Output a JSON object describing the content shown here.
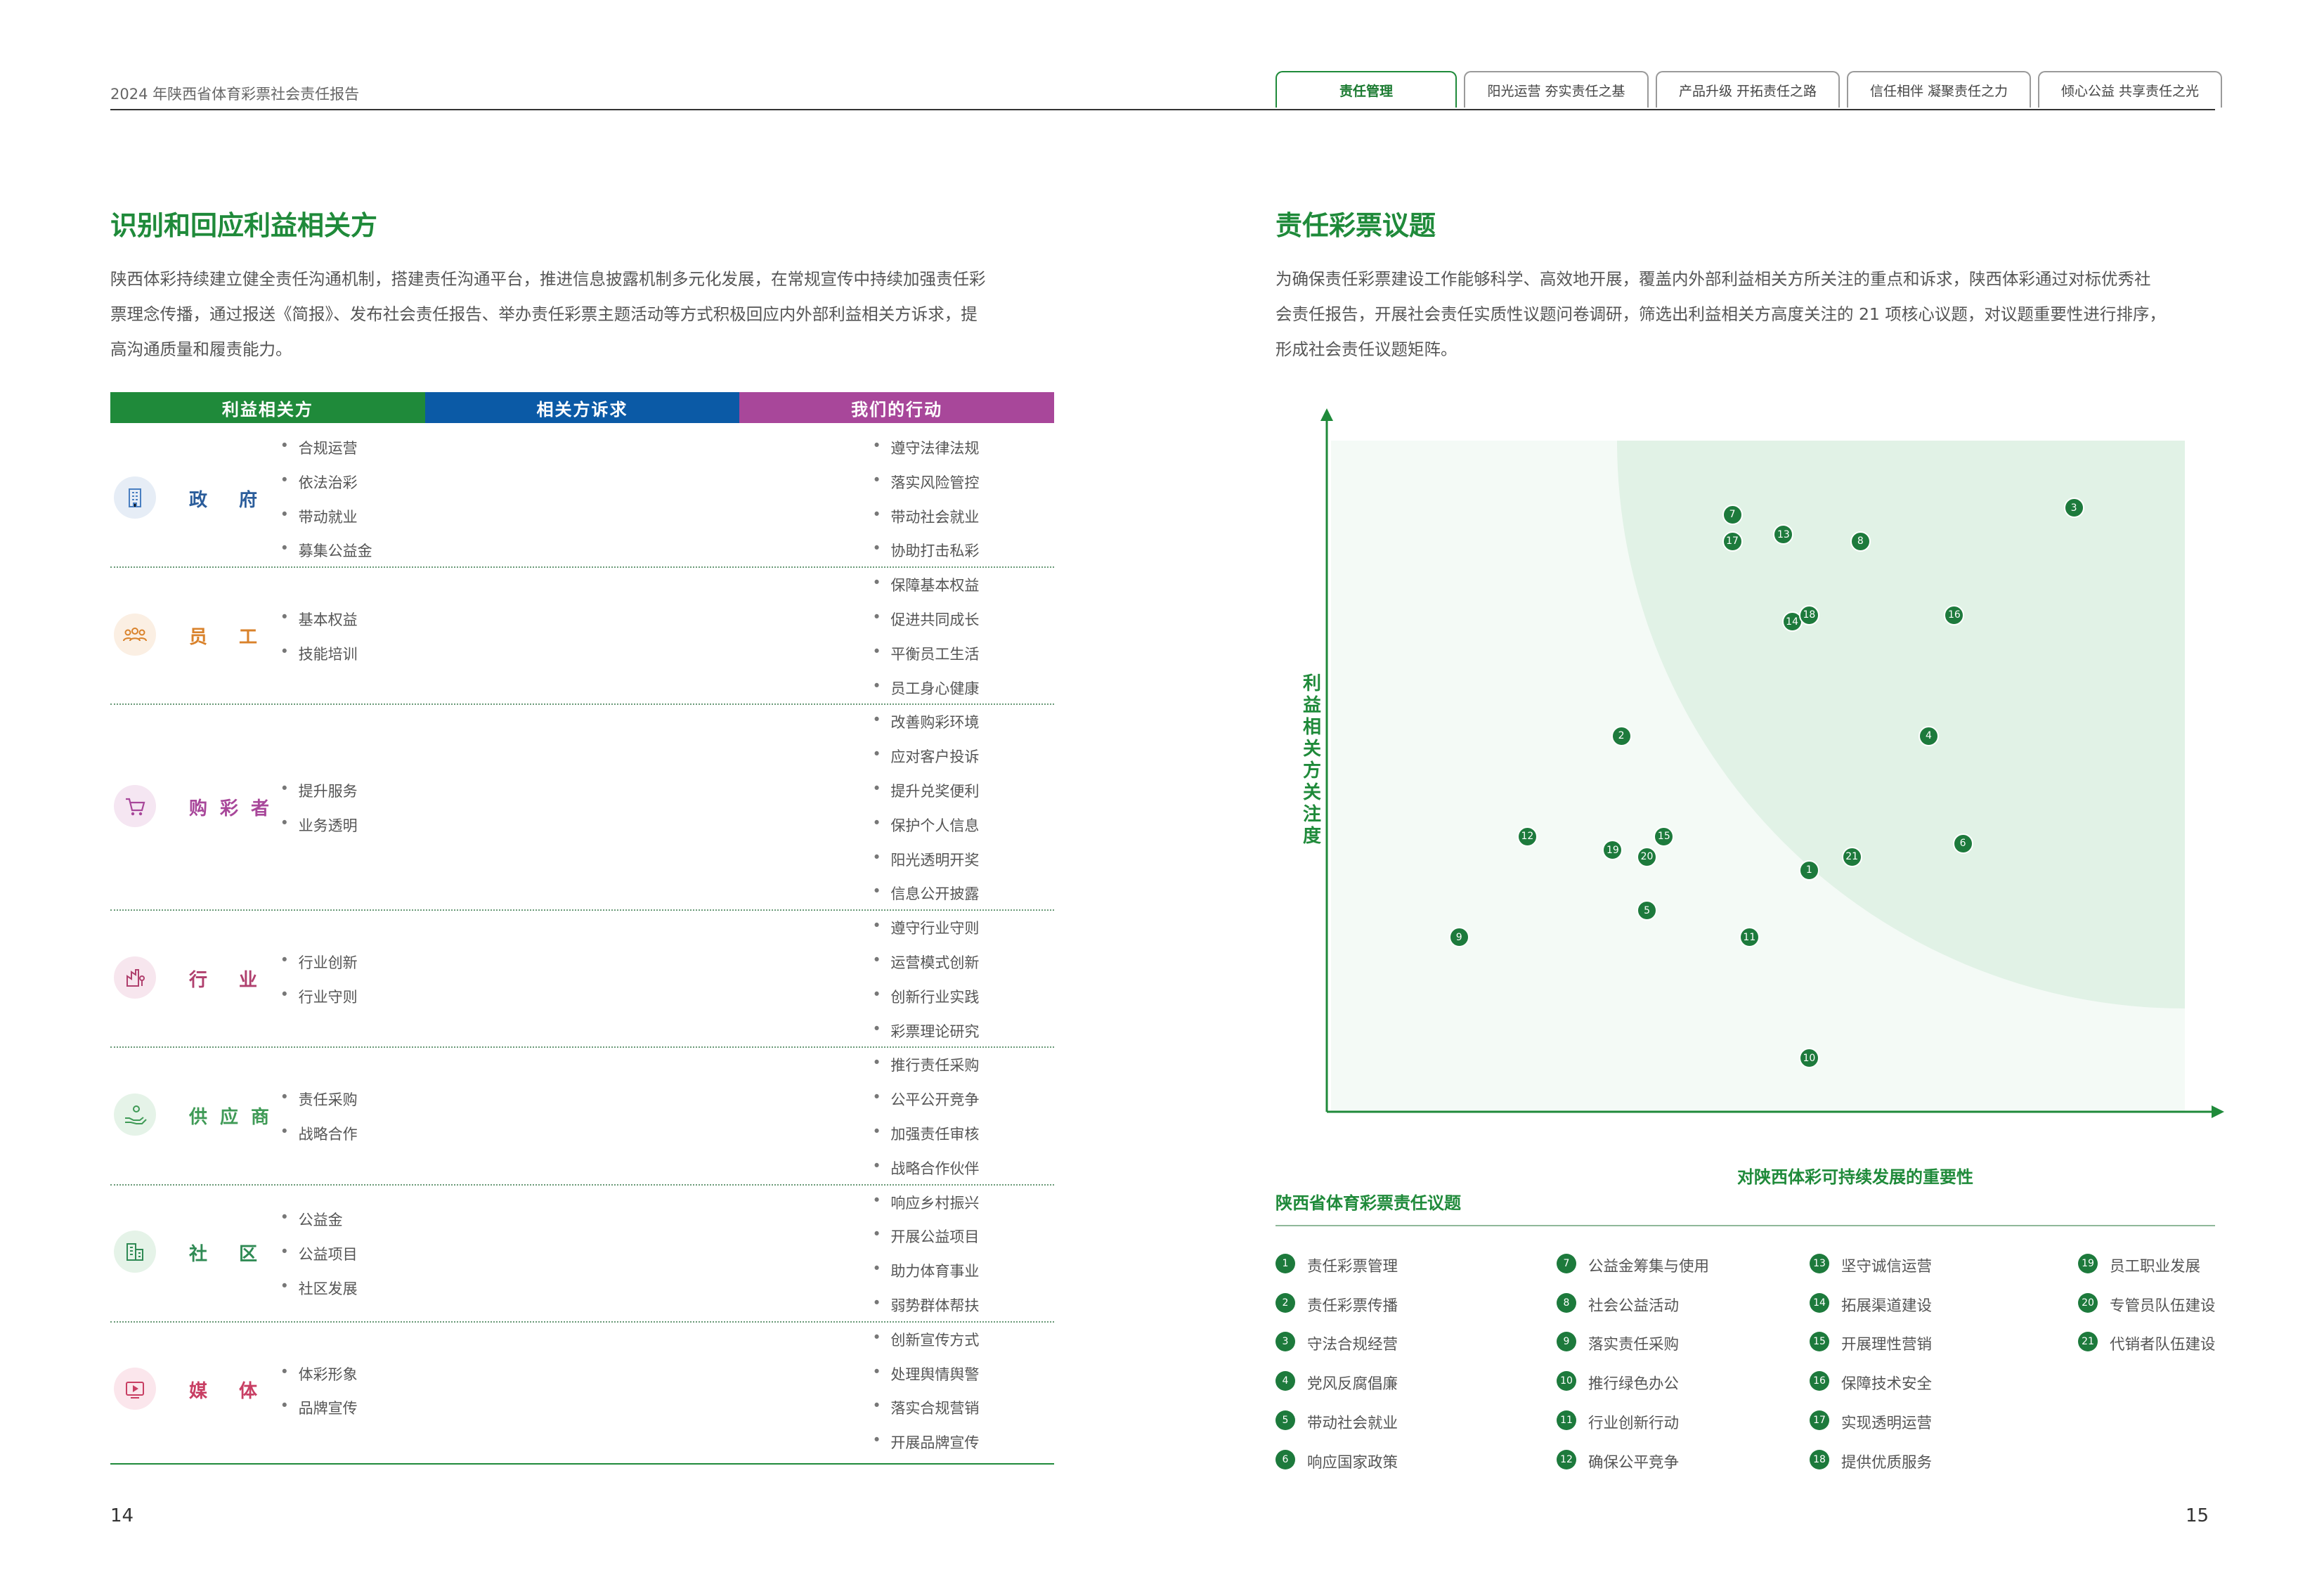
{
  "header": {
    "report_title": "2024 年陕西省体育彩票社会责任报告",
    "tabs": [
      {
        "label": "责任管理"
      },
      {
        "label": "阳光运营  夯实责任之基"
      },
      {
        "label": "产品升级  开拓责任之路"
      },
      {
        "label": "信任相伴  凝聚责任之力"
      },
      {
        "label": "倾心公益  共享责任之光"
      }
    ]
  },
  "left": {
    "title": "识别和回应利益相关方",
    "para_lines": [
      "陕西体彩持续建立健全责任沟通机制，搭建责任沟通平台，推进信息披露机制多元化发展，在常规宣传中持续加强责任彩",
      "票理念传播，通过报送《简报》、发布社会责任报告、举办责任彩票主题活动等方式积极回应内外部利益相关方诉求，提",
      "高沟通质量和履责能力。"
    ],
    "table_headers": [
      "利益相关方",
      "相关方诉求",
      "我们的行动"
    ],
    "groups": [
      {
        "name": "政  府",
        "demands": [
          "合规运营",
          "依法治彩",
          "带动就业",
          "募集公益金"
        ],
        "actions": [
          "遵守法律法规",
          "落实风险管控",
          "带动社会就业",
          "协助打击私彩"
        ]
      },
      {
        "name": "员  工",
        "demands": [
          "基本权益",
          "技能培训"
        ],
        "actions": [
          "保障基本权益",
          "促进共同成长",
          "平衡员工生活",
          "员工身心健康"
        ]
      },
      {
        "name": "购彩者",
        "demands": [
          "提升服务",
          "业务透明"
        ],
        "actions": [
          "改善购彩环境",
          "应对客户投诉",
          "提升兑奖便利",
          "保护个人信息",
          "阳光透明开奖",
          "信息公开披露"
        ]
      },
      {
        "name": "行  业",
        "demands": [
          "行业创新",
          "行业守则"
        ],
        "actions": [
          "遵守行业守则",
          "运营模式创新",
          "创新行业实践",
          "彩票理论研究"
        ]
      },
      {
        "name": "供应商",
        "demands": [
          "责任采购",
          "战略合作"
        ],
        "actions": [
          "推行责任采购",
          "公平公开竞争",
          "加强责任审核",
          "战略合作伙伴"
        ]
      },
      {
        "name": "社  区",
        "demands": [
          "公益金",
          "公益项目",
          "社区发展"
        ],
        "actions": [
          "响应乡村振兴",
          "开展公益项目",
          "助力体育事业",
          "弱势群体帮扶"
        ]
      },
      {
        "name": "媒  体",
        "demands": [
          "体彩形象",
          "品牌宣传"
        ],
        "actions": [
          "创新宣传方式",
          "处理舆情舆警",
          "落实合规营销",
          "开展品牌宣传"
        ]
      }
    ],
    "page_number": "14"
  },
  "right": {
    "title": "责任彩票议题",
    "para_lines": [
      "为确保责任彩票建设工作能够科学、高效地开展，覆盖内外部利益相关方所关注的重点和诉求，陕西体彩通过对标优秀社",
      "会责任报告，开展社会责任实质性议题问卷调研，筛选出利益相关方高度关注的 21 项核心议题，对议题重要性进行排序，",
      "形成社会责任议题矩阵。"
    ],
    "chart_data": {
      "type": "scatter",
      "ylabel": "利益相关方关注度",
      "xlabel": "对陕西体彩可持续发展的重要性",
      "points": [
        {
          "label": "1",
          "x": 0.56,
          "y": 0.36
        },
        {
          "label": "2",
          "x": 0.34,
          "y": 0.56
        },
        {
          "label": "3",
          "x": 0.87,
          "y": 0.9
        },
        {
          "label": "4",
          "x": 0.7,
          "y": 0.56
        },
        {
          "label": "5",
          "x": 0.37,
          "y": 0.3
        },
        {
          "label": "6",
          "x": 0.74,
          "y": 0.4
        },
        {
          "label": "7",
          "x": 0.47,
          "y": 0.89
        },
        {
          "label": "8",
          "x": 0.62,
          "y": 0.85
        },
        {
          "label": "9",
          "x": 0.15,
          "y": 0.26
        },
        {
          "label": "10",
          "x": 0.56,
          "y": 0.08
        },
        {
          "label": "11",
          "x": 0.49,
          "y": 0.26
        },
        {
          "label": "12",
          "x": 0.23,
          "y": 0.41
        },
        {
          "label": "13",
          "x": 0.53,
          "y": 0.86
        },
        {
          "label": "14",
          "x": 0.54,
          "y": 0.73
        },
        {
          "label": "15",
          "x": 0.39,
          "y": 0.41
        },
        {
          "label": "16",
          "x": 0.73,
          "y": 0.74
        },
        {
          "label": "17",
          "x": 0.47,
          "y": 0.85
        },
        {
          "label": "18",
          "x": 0.56,
          "y": 0.74
        },
        {
          "label": "19",
          "x": 0.33,
          "y": 0.39
        },
        {
          "label": "20",
          "x": 0.37,
          "y": 0.38
        },
        {
          "label": "21",
          "x": 0.61,
          "y": 0.38
        }
      ]
    },
    "legend_title": "陕西省体育彩票责任议题",
    "legend": [
      {
        "num": "1",
        "text": "责任彩票管理"
      },
      {
        "num": "2",
        "text": "责任彩票传播"
      },
      {
        "num": "3",
        "text": "守法合规经营"
      },
      {
        "num": "4",
        "text": "党风反腐倡廉"
      },
      {
        "num": "5",
        "text": "带动社会就业"
      },
      {
        "num": "6",
        "text": "响应国家政策"
      },
      {
        "num": "7",
        "text": "公益金筹集与使用"
      },
      {
        "num": "8",
        "text": "社会公益活动"
      },
      {
        "num": "9",
        "text": "落实责任采购"
      },
      {
        "num": "10",
        "text": "推行绿色办公"
      },
      {
        "num": "11",
        "text": "行业创新行动"
      },
      {
        "num": "12",
        "text": "确保公平竞争"
      },
      {
        "num": "13",
        "text": "坚守诚信运营"
      },
      {
        "num": "14",
        "text": "拓展渠道建设"
      },
      {
        "num": "15",
        "text": "开展理性营销"
      },
      {
        "num": "16",
        "text": "保障技术安全"
      },
      {
        "num": "17",
        "text": "实现透明运营"
      },
      {
        "num": "18",
        "text": "提供优质服务"
      },
      {
        "num": "19",
        "text": "员工职业发展"
      },
      {
        "num": "20",
        "text": "专管员队伍建设"
      },
      {
        "num": "21",
        "text": "代销者队伍建设"
      }
    ],
    "page_number": "15"
  },
  "colors": {
    "green": "#1f8a3a",
    "blue": "#0b5aa6",
    "purple": "#a8479a",
    "gov": "#2b5d9b",
    "staff": "#d9822b",
    "buyer": "#a8479a",
    "industry": "#b0406e",
    "supplier": "#3f9a56",
    "community": "#2f8a54",
    "media": "#c83e63"
  },
  "icons": [
    "building-icon",
    "people-icon",
    "cart-icon",
    "industry-icon",
    "hand-coin-icon",
    "buildings-icon",
    "video-icon"
  ]
}
